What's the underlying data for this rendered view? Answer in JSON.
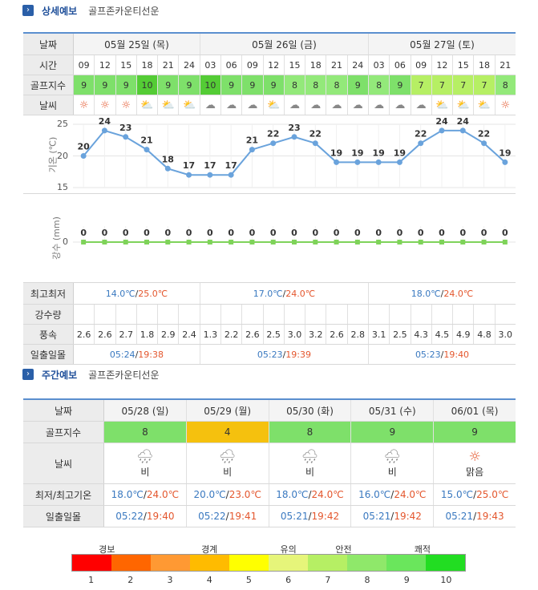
{
  "detail_header": {
    "title": "상세예보",
    "location": "골프존카운티선운"
  },
  "weekly_header": {
    "title": "주간예보",
    "location": "골프존카운티선운"
  },
  "detail": {
    "labels": {
      "date": "날짜",
      "time": "시간",
      "golf": "골프지수",
      "weather": "날씨",
      "temp_axis": "기온 (℃)",
      "rain_axis": "강수 (mm)",
      "minmax": "최고최저",
      "rain": "강수량",
      "wind": "풍속",
      "sun": "일출일몰"
    },
    "days": [
      {
        "label": "05월 25일 (목)",
        "span": 6,
        "min": "14.0℃",
        "max": "25.0℃",
        "sun": "05:24/19:38"
      },
      {
        "label": "05월 26일 (금)",
        "span": 8,
        "min": "17.0℃",
        "max": "24.0℃",
        "sun": "05:23/19:39"
      },
      {
        "label": "05월 27일 (토)",
        "span": 7,
        "min": "18.0℃",
        "max": "24.0℃",
        "sun": "05:23/19:40"
      }
    ],
    "times": [
      "09",
      "12",
      "15",
      "18",
      "21",
      "24",
      "03",
      "06",
      "09",
      "12",
      "15",
      "18",
      "21",
      "24",
      "03",
      "06",
      "09",
      "12",
      "15",
      "18",
      "21"
    ],
    "golf": [
      9,
      9,
      9,
      10,
      9,
      9,
      10,
      9,
      9,
      9,
      8,
      8,
      8,
      9,
      8,
      9,
      7,
      7,
      7,
      7,
      8
    ],
    "weather_icons": [
      "sun-icon",
      "sun-icon",
      "sun-icon",
      "partly-cloudy-icon",
      "partly-cloudy-icon",
      "partly-cloudy-icon",
      "cloud-icon",
      "cloud-icon",
      "cloud-icon",
      "partly-cloudy-icon",
      "cloud-icon",
      "cloud-icon",
      "cloud-icon",
      "cloud-icon",
      "cloud-icon",
      "cloud-icon",
      "cloud-icon",
      "partly-cloudy-icon",
      "partly-cloudy-icon",
      "partly-cloudy-icon",
      "sun-icon"
    ],
    "wind": [
      "2.6",
      "2.6",
      "2.7",
      "1.8",
      "2.9",
      "2.4",
      "1.3",
      "2.2",
      "2.6",
      "2.5",
      "3.0",
      "3.2",
      "2.6",
      "2.8",
      "3.1",
      "2.5",
      "4.3",
      "4.5",
      "4.9",
      "4.8",
      "3.0"
    ]
  },
  "chart_data": [
    {
      "type": "line",
      "ylabel": "기온 (℃)",
      "ylim": [
        15,
        25
      ],
      "yticks": [
        15,
        20,
        25
      ],
      "x": [
        "09",
        "12",
        "15",
        "18",
        "21",
        "24",
        "03",
        "06",
        "09",
        "12",
        "15",
        "18",
        "21",
        "24",
        "03",
        "06",
        "09",
        "12",
        "15",
        "18",
        "21"
      ],
      "values": [
        20,
        24,
        23,
        21,
        18,
        17,
        17,
        17,
        21,
        22,
        23,
        22,
        19,
        19,
        19,
        19,
        22,
        24,
        24,
        22,
        19
      ],
      "color": "#6aa3dc"
    },
    {
      "type": "line",
      "ylabel": "강수 (mm)",
      "yticks": [
        0
      ],
      "x": [
        "09",
        "12",
        "15",
        "18",
        "21",
        "24",
        "03",
        "06",
        "09",
        "12",
        "15",
        "18",
        "21",
        "24",
        "03",
        "06",
        "09",
        "12",
        "15",
        "18",
        "21"
      ],
      "values": [
        0,
        0,
        0,
        0,
        0,
        0,
        0,
        0,
        0,
        0,
        0,
        0,
        0,
        0,
        0,
        0,
        0,
        0,
        0,
        0,
        0
      ],
      "color": "#7fd35a"
    }
  ],
  "weekly": {
    "labels": {
      "date": "날짜",
      "golf": "골프지수",
      "weather": "날씨",
      "temp": "최저/최고기온",
      "sun": "일출일몰"
    },
    "days": [
      {
        "date": "05/28 (일)",
        "golf": "8",
        "gcls": "gw8",
        "icon": "rain-cloud-icon",
        "weather": "비",
        "min": "18.0℃",
        "max": "24.0℃",
        "sun": "05:22/19:40"
      },
      {
        "date": "05/29 (월)",
        "golf": "4",
        "gcls": "gw4",
        "icon": "rain-cloud-icon",
        "weather": "비",
        "min": "20.0℃",
        "max": "23.0℃",
        "sun": "05:22/19:41"
      },
      {
        "date": "05/30 (화)",
        "golf": "8",
        "gcls": "gw8",
        "icon": "rain-cloud-icon",
        "weather": "비",
        "min": "18.0℃",
        "max": "24.0℃",
        "sun": "05:21/19:42"
      },
      {
        "date": "05/31 (수)",
        "golf": "9",
        "gcls": "gw9",
        "icon": "rain-cloud-icon",
        "weather": "비",
        "min": "16.0℃",
        "max": "24.0℃",
        "sun": "05:21/19:42"
      },
      {
        "date": "06/01 (목)",
        "golf": "9",
        "gcls": "gw9",
        "icon": "sun-icon",
        "weather": "맑음",
        "min": "15.0℃",
        "max": "25.0℃",
        "sun": "05:21/19:43"
      }
    ]
  },
  "legend": {
    "labels": [
      "경보",
      "경계",
      "유의",
      "안전",
      "쾌적"
    ],
    "colors": [
      "#ff0000",
      "#ff6600",
      "#ff9933",
      "#ffbb00",
      "#ffff00",
      "#e6f57a",
      "#b6ef64",
      "#8fe86a",
      "#6ae65c",
      "#22dd22"
    ],
    "numbers": [
      "1",
      "2",
      "3",
      "4",
      "5",
      "6",
      "7",
      "8",
      "9",
      "10"
    ]
  }
}
